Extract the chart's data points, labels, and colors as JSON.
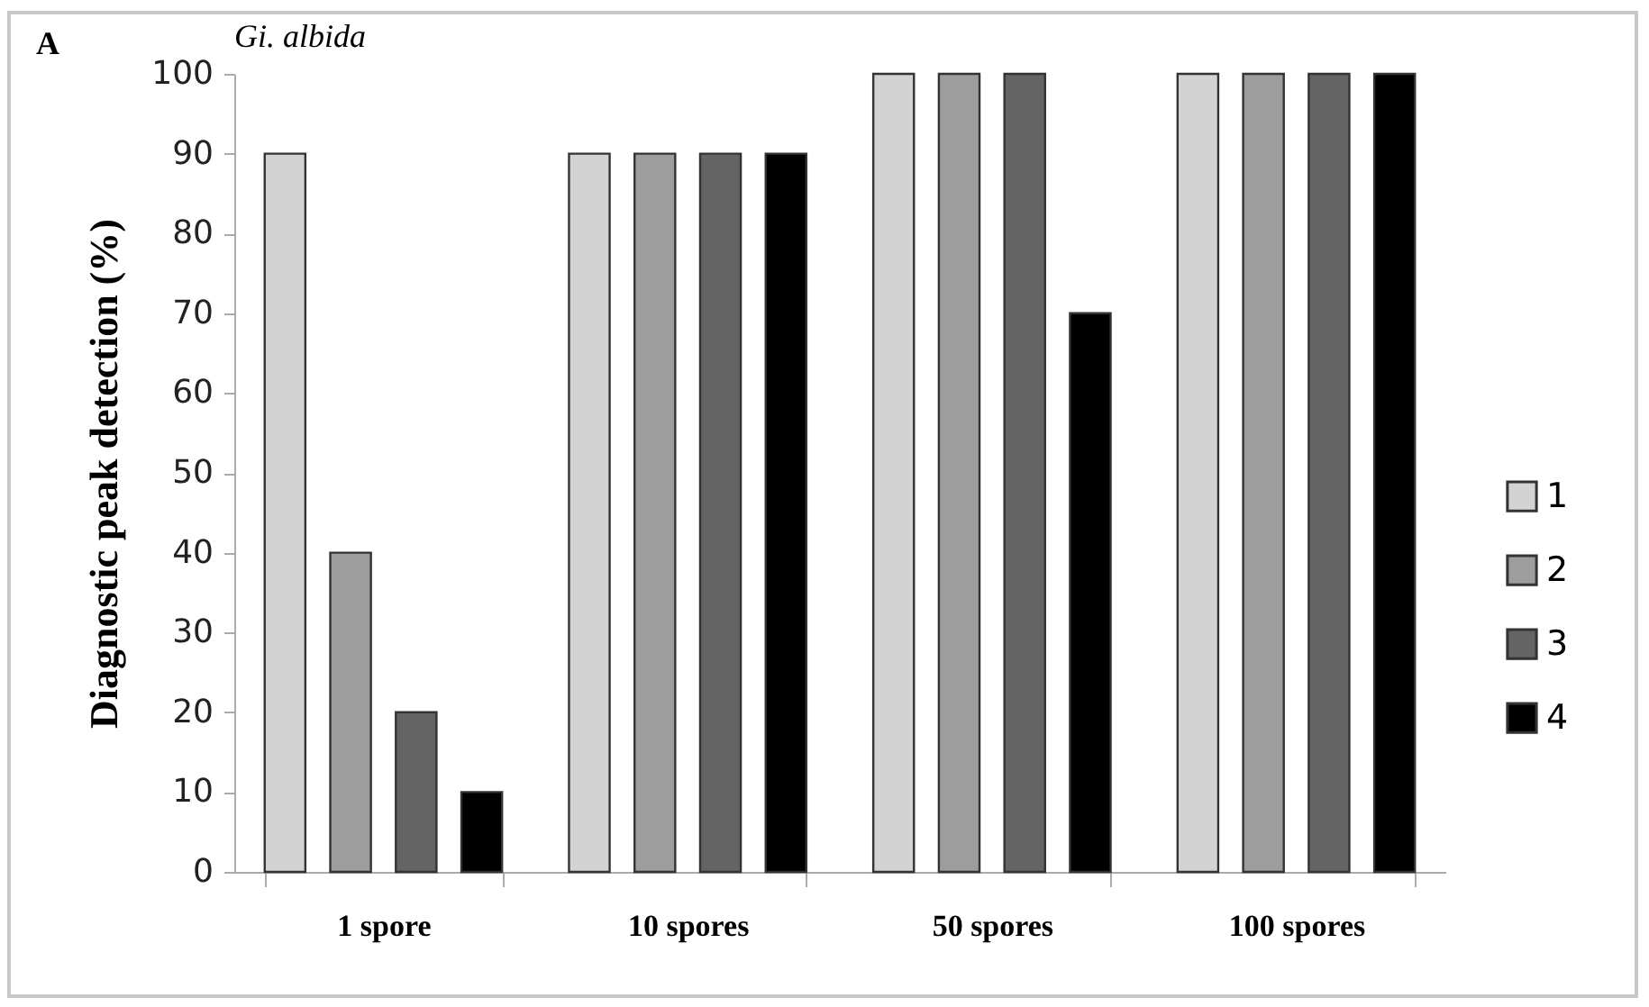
{
  "chart_data": {
    "type": "bar",
    "title": "Gi. albida",
    "annotations": [
      "A"
    ],
    "ylabel": "Diagnostic peak detection (%)",
    "categories": [
      "1 spore",
      "10 spores",
      "50 spores",
      "100 spores"
    ],
    "series": [
      {
        "name": "1",
        "color": "#d3d3d3",
        "values": [
          90,
          90,
          100,
          100
        ]
      },
      {
        "name": "2",
        "color": "#9d9d9d",
        "values": [
          40,
          90,
          100,
          100
        ]
      },
      {
        "name": "3",
        "color": "#646464",
        "values": [
          20,
          90,
          100,
          100
        ]
      },
      {
        "name": "4",
        "color": "#000000",
        "values": [
          10,
          90,
          70,
          100
        ]
      }
    ],
    "ylim": [
      0,
      100
    ],
    "yticks": [
      0,
      10,
      20,
      30,
      40,
      50,
      60,
      70,
      80,
      90,
      100
    ],
    "legend": "right"
  }
}
